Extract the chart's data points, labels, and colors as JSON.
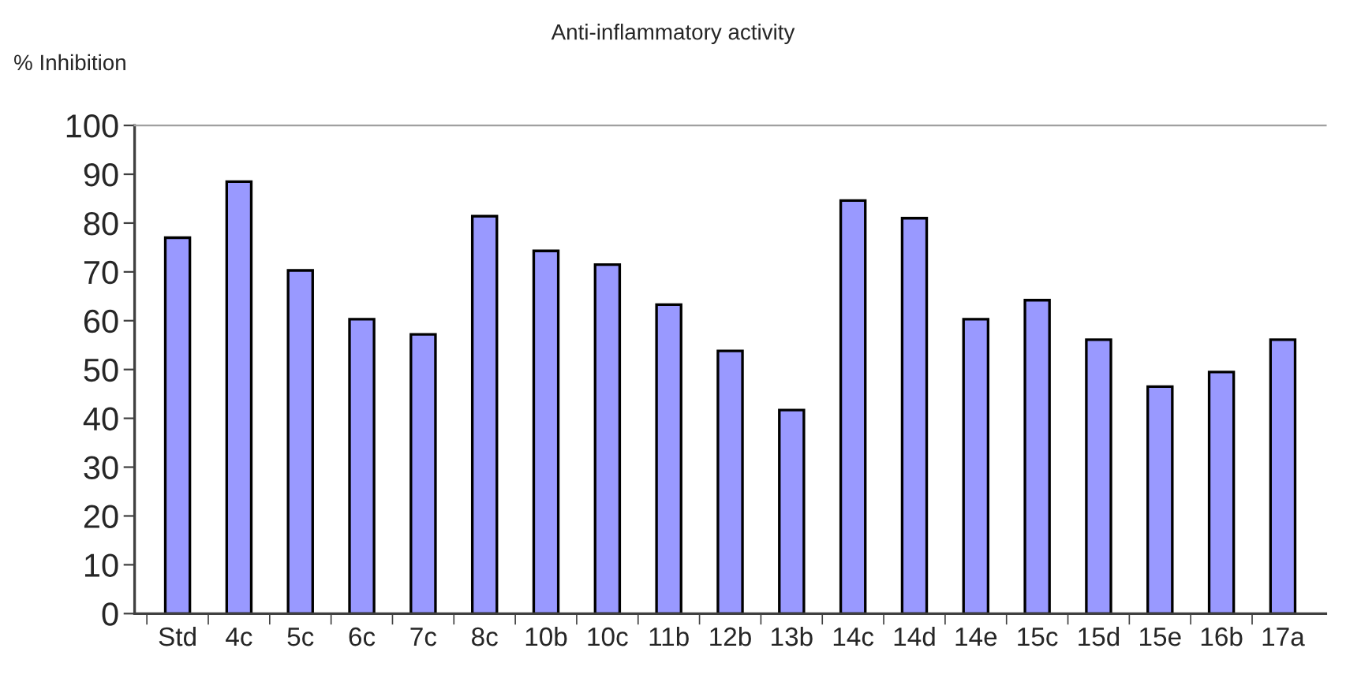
{
  "chart_data": {
    "type": "bar",
    "title": "Anti-inflammatory activity",
    "ylabel": "% Inhibition",
    "categories": [
      "Std",
      "4c",
      "5c",
      "6c",
      "7c",
      "8c",
      "10b",
      "10c",
      "11b",
      "12b",
      "13b",
      "14c",
      "14d",
      "14e",
      "15c",
      "15d",
      "15e",
      "16b",
      "17a"
    ],
    "values": [
      77,
      88.5,
      70.3,
      60.3,
      57.2,
      81.4,
      74.3,
      71.5,
      63.3,
      53.8,
      41.7,
      84.6,
      81,
      60.3,
      64.2,
      56.1,
      46.5,
      49.5,
      56.1
    ],
    "color": "#9999ff",
    "ylim": [
      0,
      100
    ],
    "yticks": [
      0,
      10,
      20,
      30,
      40,
      50,
      60,
      70,
      80,
      90,
      100
    ],
    "grid": false,
    "legend": false
  }
}
